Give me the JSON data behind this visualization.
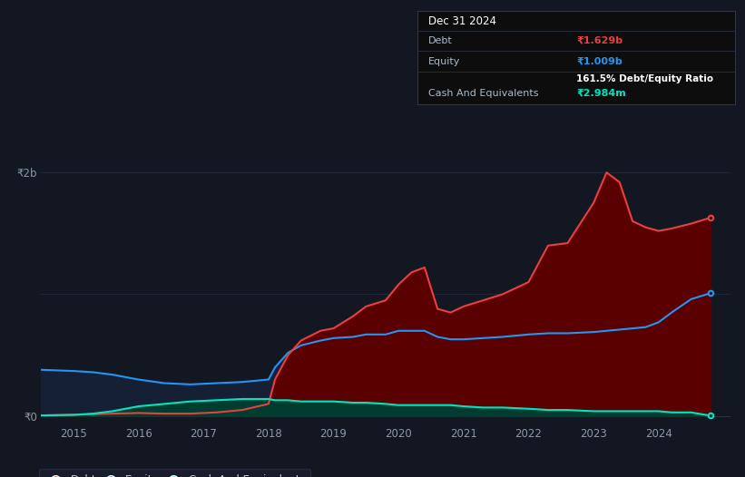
{
  "background_color": "#131722",
  "plot_bg_color": "#131722",
  "tooltip_bg": "#0d0d0d",
  "tooltip_border": "#2a3045",
  "grid_color": "#1e2535",
  "tooltip": {
    "date": "Dec 31 2024",
    "debt_label": "Debt",
    "debt_val": "₹1.629b",
    "equity_label": "Equity",
    "equity_val": "₹1.009b",
    "ratio": "161.5% Debt/Equity Ratio",
    "cash_label": "Cash And Equivalents",
    "cash_val": "₹2.984m"
  },
  "ylabel_2b": "₹2b",
  "ylabel_0": "₹0",
  "years": [
    2014.5,
    2015.0,
    2015.3,
    2015.6,
    2016.0,
    2016.4,
    2016.8,
    2017.2,
    2017.6,
    2018.0,
    2018.1,
    2018.3,
    2018.5,
    2018.8,
    2019.0,
    2019.3,
    2019.5,
    2019.8,
    2020.0,
    2020.2,
    2020.4,
    2020.6,
    2020.8,
    2021.0,
    2021.3,
    2021.6,
    2022.0,
    2022.3,
    2022.6,
    2023.0,
    2023.2,
    2023.4,
    2023.6,
    2023.8,
    2024.0,
    2024.2,
    2024.5,
    2024.8
  ],
  "debt": [
    0.005,
    0.01,
    0.015,
    0.02,
    0.025,
    0.02,
    0.02,
    0.03,
    0.05,
    0.1,
    0.3,
    0.5,
    0.62,
    0.7,
    0.72,
    0.82,
    0.9,
    0.95,
    1.08,
    1.18,
    1.22,
    0.88,
    0.85,
    0.9,
    0.95,
    1.0,
    1.1,
    1.4,
    1.42,
    1.75,
    2.0,
    1.92,
    1.6,
    1.55,
    1.52,
    1.54,
    1.58,
    1.629
  ],
  "equity": [
    0.38,
    0.37,
    0.36,
    0.34,
    0.3,
    0.27,
    0.26,
    0.27,
    0.28,
    0.3,
    0.4,
    0.52,
    0.58,
    0.62,
    0.64,
    0.65,
    0.67,
    0.67,
    0.7,
    0.7,
    0.7,
    0.65,
    0.63,
    0.63,
    0.64,
    0.65,
    0.67,
    0.68,
    0.68,
    0.69,
    0.7,
    0.71,
    0.72,
    0.73,
    0.77,
    0.85,
    0.96,
    1.009
  ],
  "cash": [
    0.005,
    0.01,
    0.02,
    0.04,
    0.08,
    0.1,
    0.12,
    0.13,
    0.14,
    0.14,
    0.13,
    0.13,
    0.12,
    0.12,
    0.12,
    0.11,
    0.11,
    0.1,
    0.09,
    0.09,
    0.09,
    0.09,
    0.09,
    0.08,
    0.07,
    0.07,
    0.06,
    0.05,
    0.05,
    0.04,
    0.04,
    0.04,
    0.04,
    0.04,
    0.04,
    0.03,
    0.03,
    0.003
  ],
  "debt_color": "#e84040",
  "equity_color": "#2196f3",
  "cash_color": "#00e5c0",
  "debt_fill": "#5a0000",
  "equity_fill": "#162035",
  "cash_fill": "#003d30",
  "legend_items": [
    "Debt",
    "Equity",
    "Cash And Equivalents"
  ],
  "x_ticks": [
    2015,
    2016,
    2017,
    2018,
    2019,
    2020,
    2021,
    2022,
    2023,
    2024
  ],
  "xlim": [
    2014.5,
    2025.1
  ],
  "ylim": [
    -0.05,
    2.3
  ]
}
